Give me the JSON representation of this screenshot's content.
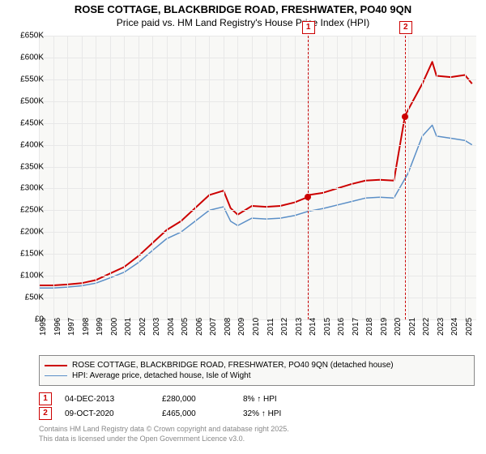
{
  "title": {
    "line1": "ROSE COTTAGE, BLACKBRIDGE ROAD, FRESHWATER, PO40 9QN",
    "line2": "Price paid vs. HM Land Registry's House Price Index (HPI)",
    "fontsize_line1": 13,
    "fontsize_line2": 12,
    "color": "#000000"
  },
  "chart": {
    "type": "line",
    "background_color": "#f8f8f6",
    "grid_color": "#e8e8e8",
    "xlim": [
      1995,
      2025.8
    ],
    "ylim": [
      0,
      650000
    ],
    "ytick_step": 50000,
    "ytick_labels": [
      "£0",
      "£50K",
      "£100K",
      "£150K",
      "£200K",
      "£250K",
      "£300K",
      "£350K",
      "£400K",
      "£450K",
      "£500K",
      "£550K",
      "£600K",
      "£650K"
    ],
    "xtick_step": 1,
    "xtick_labels": [
      "1995",
      "1996",
      "1997",
      "1998",
      "1999",
      "2000",
      "2001",
      "2002",
      "2003",
      "2004",
      "2005",
      "2006",
      "2007",
      "2008",
      "2009",
      "2010",
      "2011",
      "2012",
      "2013",
      "2014",
      "2015",
      "2016",
      "2017",
      "2018",
      "2019",
      "2020",
      "2021",
      "2022",
      "2023",
      "2024",
      "2025"
    ],
    "series": [
      {
        "name": "ROSE COTTAGE, BLACKBRIDGE ROAD, FRESHWATER, PO40 9QN (detached house)",
        "color": "#cc0000",
        "line_width": 2,
        "x": [
          1995,
          1996,
          1997,
          1998,
          1999,
          2000,
          2001,
          2002,
          2003,
          2004,
          2005,
          2006,
          2007,
          2008,
          2008.5,
          2009,
          2010,
          2011,
          2012,
          2013,
          2013.92,
          2014,
          2015,
          2016,
          2017,
          2018,
          2019,
          2020,
          2020.77,
          2021,
          2022,
          2022.7,
          2023,
          2024,
          2025,
          2025.5
        ],
        "y": [
          78000,
          78000,
          80000,
          83000,
          90000,
          105000,
          120000,
          145000,
          175000,
          205000,
          225000,
          255000,
          285000,
          295000,
          255000,
          240000,
          260000,
          258000,
          260000,
          268000,
          280000,
          285000,
          290000,
          300000,
          310000,
          318000,
          320000,
          318000,
          465000,
          480000,
          540000,
          590000,
          558000,
          555000,
          560000,
          540000
        ]
      },
      {
        "name": "HPI: Average price, detached house, Isle of Wight",
        "color": "#5b8fc7",
        "line_width": 1.5,
        "x": [
          1995,
          1996,
          1997,
          1998,
          1999,
          2000,
          2001,
          2002,
          2003,
          2004,
          2005,
          2006,
          2007,
          2008,
          2008.5,
          2009,
          2010,
          2011,
          2012,
          2013,
          2014,
          2015,
          2016,
          2017,
          2018,
          2019,
          2020,
          2021,
          2022,
          2022.7,
          2023,
          2024,
          2025,
          2025.5
        ],
        "y": [
          72000,
          72000,
          74000,
          77000,
          83000,
          95000,
          108000,
          130000,
          158000,
          185000,
          200000,
          225000,
          250000,
          258000,
          225000,
          215000,
          232000,
          230000,
          232000,
          238000,
          248000,
          254000,
          262000,
          270000,
          278000,
          280000,
          278000,
          335000,
          420000,
          445000,
          420000,
          415000,
          410000,
          400000
        ]
      }
    ],
    "sale_markers": [
      {
        "n": "1",
        "x": 2013.92,
        "price": 280000,
        "color": "#cc0000"
      },
      {
        "n": "2",
        "x": 2020.77,
        "price": 465000,
        "color": "#cc0000"
      }
    ]
  },
  "legend": {
    "items": [
      {
        "color": "#cc0000",
        "width": 2,
        "label": "ROSE COTTAGE, BLACKBRIDGE ROAD, FRESHWATER, PO40 9QN (detached house)"
      },
      {
        "color": "#5b8fc7",
        "width": 1.5,
        "label": "HPI: Average price, detached house, Isle of Wight"
      }
    ]
  },
  "sales": [
    {
      "n": "1",
      "date": "04-DEC-2013",
      "price": "£280,000",
      "delta": "8% ↑ HPI",
      "color": "#cc0000"
    },
    {
      "n": "2",
      "date": "09-OCT-2020",
      "price": "£465,000",
      "delta": "32% ↑ HPI",
      "color": "#cc0000"
    }
  ],
  "footer": {
    "line1": "Contains HM Land Registry data © Crown copyright and database right 2025.",
    "line2": "This data is licensed under the Open Government Licence v3.0.",
    "color": "#888888",
    "fontsize": 9
  }
}
